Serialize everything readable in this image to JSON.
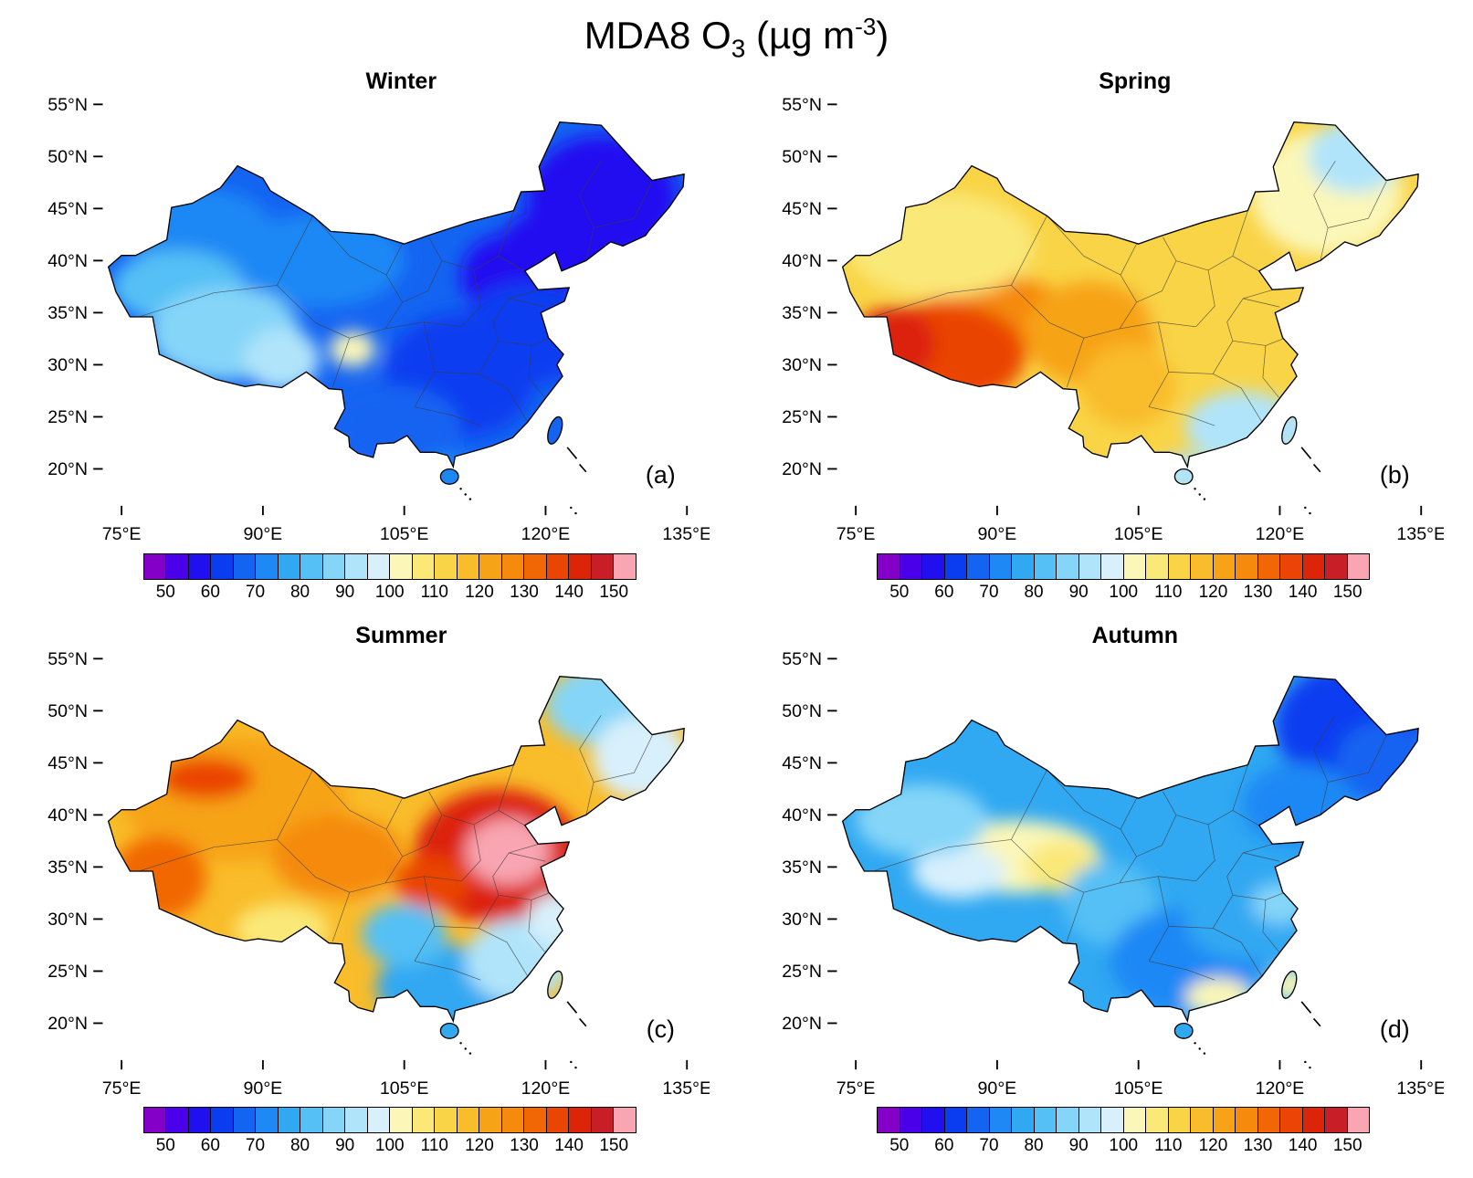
{
  "figure": {
    "title_text": "MDA8 O₃ (µg m⁻³)",
    "title_parts": {
      "prefix": "MDA8 O",
      "sub": "3",
      "mid": " (µg m",
      "sup": "-3",
      "suffix": ")"
    }
  },
  "panels": [
    {
      "title": "Winter",
      "corner_label": "(a)"
    },
    {
      "title": "Spring",
      "corner_label": "(b)"
    },
    {
      "title": "Summer",
      "corner_label": "(c)"
    },
    {
      "title": "Autumn",
      "corner_label": "(d)"
    }
  ],
  "chart_data": {
    "type": "heatmap",
    "title": "MDA8 O3 (µg m-3)",
    "variable": "MDA8 ozone concentration",
    "units": "µg m-3",
    "region": "China",
    "lon_range": [
      73,
      136
    ],
    "lat_range": [
      17,
      55
    ],
    "lon_ticks": [
      {
        "value": 75,
        "label": "75°E"
      },
      {
        "value": 90,
        "label": "90°E"
      },
      {
        "value": 105,
        "label": "105°E"
      },
      {
        "value": 120,
        "label": "120°E"
      },
      {
        "value": 135,
        "label": "135°E"
      }
    ],
    "lat_ticks": [
      {
        "value": 55,
        "label": "55°N"
      },
      {
        "value": 50,
        "label": "50°N"
      },
      {
        "value": 45,
        "label": "45°N"
      },
      {
        "value": 40,
        "label": "40°N"
      },
      {
        "value": 35,
        "label": "35°N"
      },
      {
        "value": 30,
        "label": "30°N"
      },
      {
        "value": 25,
        "label": "25°N"
      },
      {
        "value": 20,
        "label": "20°N"
      }
    ],
    "colorbar": {
      "bin_size": 5,
      "levels": [
        45,
        50,
        55,
        60,
        65,
        70,
        75,
        80,
        85,
        90,
        95,
        100,
        105,
        110,
        115,
        120,
        125,
        130,
        135,
        140,
        145,
        150,
        155
      ],
      "tick_labels": [
        "50",
        "60",
        "70",
        "80",
        "90",
        "100",
        "110",
        "120",
        "130",
        "140",
        "150"
      ],
      "colors": [
        "#8400C8",
        "#4A00E8",
        "#2010F0",
        "#0A3CF0",
        "#1464F2",
        "#1E88F5",
        "#30A8F2",
        "#55C0F5",
        "#85D5F8",
        "#B0E4FA",
        "#D8F0FC",
        "#FBF7B8",
        "#FAE878",
        "#F9D446",
        "#F9BC2A",
        "#F7A318",
        "#F58A0C",
        "#F16706",
        "#EA4505",
        "#DC2408",
        "#C81E28",
        "#F9A6B2"
      ]
    },
    "panels": [
      {
        "season": "Winter",
        "label": "(a)",
        "base_value": 68,
        "features": [
          {
            "lon": 126,
            "lat": 46,
            "rlon": 8,
            "rlat": 6,
            "value": 57
          },
          {
            "lon": 121,
            "lat": 41,
            "rlon": 6,
            "rlat": 4,
            "value": 58
          },
          {
            "lon": 116,
            "lat": 38.5,
            "rlon": 5,
            "rlat": 4,
            "value": 57
          },
          {
            "lon": 118,
            "lat": 33,
            "rlon": 7,
            "rlat": 5,
            "value": 62
          },
          {
            "lon": 111,
            "lat": 29,
            "rlon": 8,
            "rlat": 6,
            "value": 63
          },
          {
            "lon": 104,
            "lat": 24,
            "rlon": 7,
            "rlat": 4,
            "value": 66
          },
          {
            "lon": 96,
            "lat": 40,
            "rlon": 9,
            "rlat": 4.5,
            "value": 72
          },
          {
            "lon": 83,
            "lat": 43,
            "rlon": 8,
            "rlat": 4,
            "value": 70
          },
          {
            "lon": 81,
            "lat": 37.5,
            "rlon": 7,
            "rlat": 3.5,
            "value": 83
          },
          {
            "lon": 86,
            "lat": 33,
            "rlon": 8,
            "rlat": 4.5,
            "value": 87
          },
          {
            "lon": 92,
            "lat": 30.5,
            "rlon": 4,
            "rlat": 3,
            "value": 90
          },
          {
            "lon": 99.5,
            "lat": 31.5,
            "rlon": 2.4,
            "rlat": 1.7,
            "value": 101
          },
          {
            "lon": 109.8,
            "lat": 19.5,
            "rlon": 3,
            "rlat": 2,
            "value": 74
          }
        ]
      },
      {
        "season": "Spring",
        "label": "(b)",
        "base_value": 110,
        "features": [
          {
            "lon": 90,
            "lat": 34.5,
            "rlon": 8,
            "rlat": 4,
            "value": 127
          },
          {
            "lon": 84,
            "lat": 31,
            "rlon": 9,
            "rlat": 5,
            "value": 136
          },
          {
            "lon": 79,
            "lat": 32,
            "rlon": 4.5,
            "rlat": 3.5,
            "value": 144
          },
          {
            "lon": 100,
            "lat": 33,
            "rlon": 7,
            "rlat": 5,
            "value": 124
          },
          {
            "lon": 104,
            "lat": 28,
            "rlon": 5,
            "rlat": 4,
            "value": 118
          },
          {
            "lon": 84,
            "lat": 41.5,
            "rlon": 10,
            "rlat": 5,
            "value": 108
          },
          {
            "lon": 114,
            "lat": 36,
            "rlon": 8,
            "rlat": 6,
            "value": 113
          },
          {
            "lon": 125,
            "lat": 46.5,
            "rlon": 8,
            "rlat": 6,
            "value": 101
          },
          {
            "lon": 128,
            "lat": 50,
            "rlon": 5,
            "rlat": 3.5,
            "value": 93
          },
          {
            "lon": 116,
            "lat": 24,
            "rlon": 6,
            "rlat": 3.5,
            "value": 92
          },
          {
            "lon": 110,
            "lat": 19.5,
            "rlon": 3,
            "rlat": 2,
            "value": 90
          },
          {
            "lon": 121,
            "lat": 23.7,
            "rlon": 2.5,
            "rlat": 2,
            "value": 92
          }
        ]
      },
      {
        "season": "Summer",
        "label": "(c)",
        "base_value": 116,
        "features": [
          {
            "lon": 87,
            "lat": 41.5,
            "rlon": 12,
            "rlat": 6,
            "value": 124
          },
          {
            "lon": 98,
            "lat": 36,
            "rlon": 7,
            "rlat": 4,
            "value": 126
          },
          {
            "lon": 84,
            "lat": 43.5,
            "rlon": 5,
            "rlat": 2,
            "value": 136
          },
          {
            "lon": 79,
            "lat": 34,
            "rlon": 5,
            "rlat": 4,
            "value": 134
          },
          {
            "lon": 115,
            "lat": 36,
            "rlon": 9,
            "rlat": 6.5,
            "value": 143
          },
          {
            "lon": 116,
            "lat": 36.5,
            "rlon": 4.5,
            "rlat": 3.2,
            "value": 151
          },
          {
            "lon": 108,
            "lat": 33.5,
            "rlon": 4,
            "rlat": 2.5,
            "value": 136
          },
          {
            "lon": 92,
            "lat": 29,
            "rlon": 5,
            "rlat": 2.5,
            "value": 108
          },
          {
            "lon": 110,
            "lat": 23.5,
            "rlon": 8,
            "rlat": 4,
            "value": 76
          },
          {
            "lon": 105,
            "lat": 28.5,
            "rlon": 4.5,
            "rlat": 3,
            "value": 84
          },
          {
            "lon": 117,
            "lat": 26,
            "rlon": 5.5,
            "rlat": 4,
            "value": 90
          },
          {
            "lon": 121.5,
            "lat": 30,
            "rlon": 3.5,
            "rlat": 2.5,
            "value": 95
          },
          {
            "lon": 127,
            "lat": 50.5,
            "rlon": 7,
            "rlat": 4,
            "value": 86
          },
          {
            "lon": 130,
            "lat": 45.5,
            "rlon": 5,
            "rlat": 4,
            "value": 96
          },
          {
            "lon": 109.8,
            "lat": 19.3,
            "rlon": 3,
            "rlat": 2,
            "value": 78
          }
        ]
      },
      {
        "season": "Autumn",
        "label": "(d)",
        "base_value": 77,
        "features": [
          {
            "lon": 127.5,
            "lat": 48.5,
            "rlon": 8,
            "rlat": 6,
            "value": 64
          },
          {
            "lon": 131,
            "lat": 45,
            "rlon": 5,
            "rlat": 4,
            "value": 67
          },
          {
            "lon": 122,
            "lat": 41,
            "rlon": 6,
            "rlat": 4,
            "value": 71
          },
          {
            "lon": 92,
            "lat": 36,
            "rlon": 9,
            "rlat": 3.5,
            "value": 104
          },
          {
            "lon": 86,
            "lat": 34.5,
            "rlon": 5,
            "rlat": 2.5,
            "value": 99
          },
          {
            "lon": 97,
            "lat": 35,
            "rlon": 4,
            "rlat": 2.5,
            "value": 108
          },
          {
            "lon": 82,
            "lat": 39.5,
            "rlon": 7,
            "rlat": 3.5,
            "value": 89
          },
          {
            "lon": 102,
            "lat": 31.5,
            "rlon": 5,
            "rlat": 4,
            "value": 83
          },
          {
            "lon": 110,
            "lat": 26,
            "rlon": 8,
            "rlat": 5,
            "value": 72
          },
          {
            "lon": 116,
            "lat": 30,
            "rlon": 6,
            "rlat": 4,
            "value": 76
          },
          {
            "lon": 120,
            "lat": 31.5,
            "rlon": 3,
            "rlat": 2,
            "value": 88
          },
          {
            "lon": 113.5,
            "lat": 22.5,
            "rlon": 3.5,
            "rlat": 1.8,
            "value": 101
          },
          {
            "lon": 121,
            "lat": 23.7,
            "rlon": 2,
            "rlat": 1.6,
            "value": 100
          }
        ]
      }
    ]
  }
}
